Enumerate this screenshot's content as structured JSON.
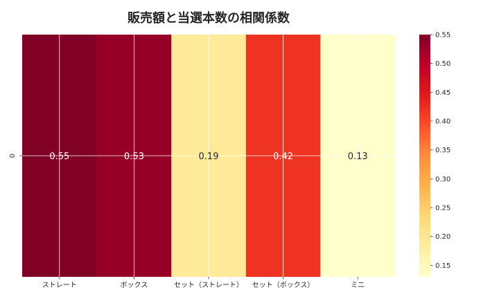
{
  "chart_data": {
    "type": "heatmap",
    "title": "販売額と当選本数の相関係数",
    "xlabel": "",
    "ylabel": "",
    "rows": [
      "0"
    ],
    "columns": [
      "ストレート",
      "ボックス",
      "セット（ストレート）",
      "セット（ボックス）",
      "ミニ"
    ],
    "values": [
      [
        0.55,
        0.53,
        0.19,
        0.42,
        0.13
      ]
    ],
    "annotations": [
      "0.55",
      "0.53",
      "0.19",
      "0.42",
      "0.13"
    ],
    "colormap": "YlOrRd",
    "colorbar": {
      "min": 0.13,
      "max": 0.55,
      "ticks": [
        0.15,
        0.2,
        0.25,
        0.3,
        0.35,
        0.4,
        0.45,
        0.5,
        0.55
      ],
      "tick_labels": [
        "0.15",
        "0.20",
        "0.25",
        "0.30",
        "0.35",
        "0.40",
        "0.45",
        "0.50",
        "0.55"
      ]
    },
    "grid": true,
    "colors": {
      "grid": "#ffffff",
      "text": "#262626",
      "ylorrd": [
        "#ffffcc",
        "#ffeda0",
        "#fed976",
        "#feb24c",
        "#fd8d3c",
        "#fc4e2a",
        "#e31a1c",
        "#bd0026",
        "#800026"
      ]
    }
  }
}
